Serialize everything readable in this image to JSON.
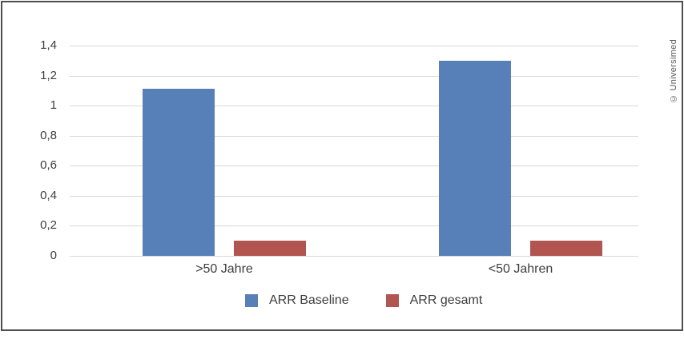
{
  "credit": "© Universimed",
  "chart_data": {
    "type": "bar",
    "categories": [
      ">50 Jahre",
      "<50 Jahren"
    ],
    "series": [
      {
        "name": "ARR Baseline",
        "color": "#5780B8",
        "values": [
          1.11,
          1.3
        ]
      },
      {
        "name": "ARR gesamt",
        "color": "#B25551",
        "values": [
          0.1,
          0.1
        ]
      }
    ],
    "ylim": [
      0,
      1.4
    ],
    "yticks": [
      {
        "value": 0,
        "label": "0"
      },
      {
        "value": 0.2,
        "label": "0,2"
      },
      {
        "value": 0.4,
        "label": "0,4"
      },
      {
        "value": 0.6,
        "label": "0,6"
      },
      {
        "value": 0.8,
        "label": "0,8"
      },
      {
        "value": 1,
        "label": "1"
      },
      {
        "value": 1.2,
        "label": "1,2"
      },
      {
        "value": 1.4,
        "label": "1,4"
      }
    ],
    "grid": "horizontal",
    "legend_position": "bottom"
  }
}
